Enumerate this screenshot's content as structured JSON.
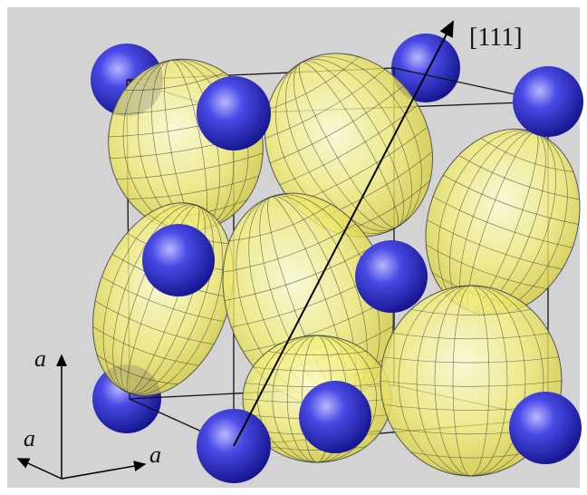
{
  "labels": {
    "direction": "[111]",
    "axis_vertical": "a",
    "axis_diagonal": "a",
    "axis_horizontal": "a"
  }
}
